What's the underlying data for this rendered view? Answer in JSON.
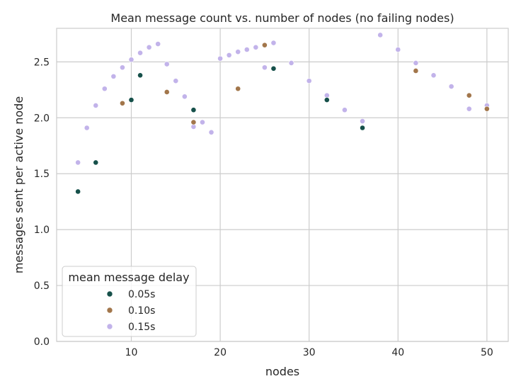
{
  "chart_data": {
    "type": "scatter",
    "title": "Mean message count vs. number of nodes (no failing nodes)",
    "xlabel": "nodes",
    "ylabel": "messages sent per active node",
    "xlim": [
      1.6,
      52.4
    ],
    "ylim": [
      0.0,
      2.8
    ],
    "xticks": [
      "10",
      "20",
      "30",
      "40",
      "50"
    ],
    "yticks": [
      "0.0",
      "0.5",
      "1.0",
      "1.5",
      "2.0",
      "2.5"
    ],
    "grid": true,
    "legend": {
      "title": "mean message delay",
      "position": "lower-left"
    },
    "series": [
      {
        "name": "0.05s",
        "color": "#16504a",
        "points": [
          [
            4,
            1.34
          ],
          [
            6,
            1.6
          ],
          [
            10,
            2.16
          ],
          [
            11,
            2.38
          ],
          [
            17,
            2.07
          ],
          [
            26,
            2.44
          ],
          [
            32,
            2.16
          ],
          [
            36,
            1.91
          ]
        ]
      },
      {
        "name": "0.10s",
        "color": "#a2764b",
        "points": [
          [
            9,
            2.13
          ],
          [
            14,
            2.23
          ],
          [
            17,
            1.96
          ],
          [
            22,
            2.26
          ],
          [
            25,
            2.65
          ],
          [
            42,
            2.42
          ],
          [
            48,
            2.2
          ],
          [
            50,
            2.08
          ]
        ]
      },
      {
        "name": "0.15s",
        "color": "#c2b3ea",
        "points": [
          [
            4,
            1.6
          ],
          [
            5,
            1.91
          ],
          [
            6,
            2.11
          ],
          [
            7,
            2.26
          ],
          [
            8,
            2.37
          ],
          [
            9,
            2.45
          ],
          [
            10,
            2.52
          ],
          [
            11,
            2.58
          ],
          [
            12,
            2.63
          ],
          [
            13,
            2.66
          ],
          [
            14,
            2.48
          ],
          [
            15,
            2.33
          ],
          [
            16,
            2.19
          ],
          [
            17,
            1.92
          ],
          [
            18,
            1.96
          ],
          [
            19,
            1.87
          ],
          [
            20,
            2.53
          ],
          [
            21,
            2.56
          ],
          [
            22,
            2.59
          ],
          [
            23,
            2.61
          ],
          [
            24,
            2.63
          ],
          [
            25,
            2.45
          ],
          [
            26,
            2.67
          ],
          [
            28,
            2.49
          ],
          [
            30,
            2.33
          ],
          [
            32,
            2.2
          ],
          [
            34,
            2.07
          ],
          [
            36,
            1.97
          ],
          [
            38,
            2.74
          ],
          [
            40,
            2.61
          ],
          [
            42,
            2.49
          ],
          [
            44,
            2.38
          ],
          [
            46,
            2.28
          ],
          [
            48,
            2.08
          ],
          [
            50,
            2.11
          ]
        ]
      }
    ]
  }
}
